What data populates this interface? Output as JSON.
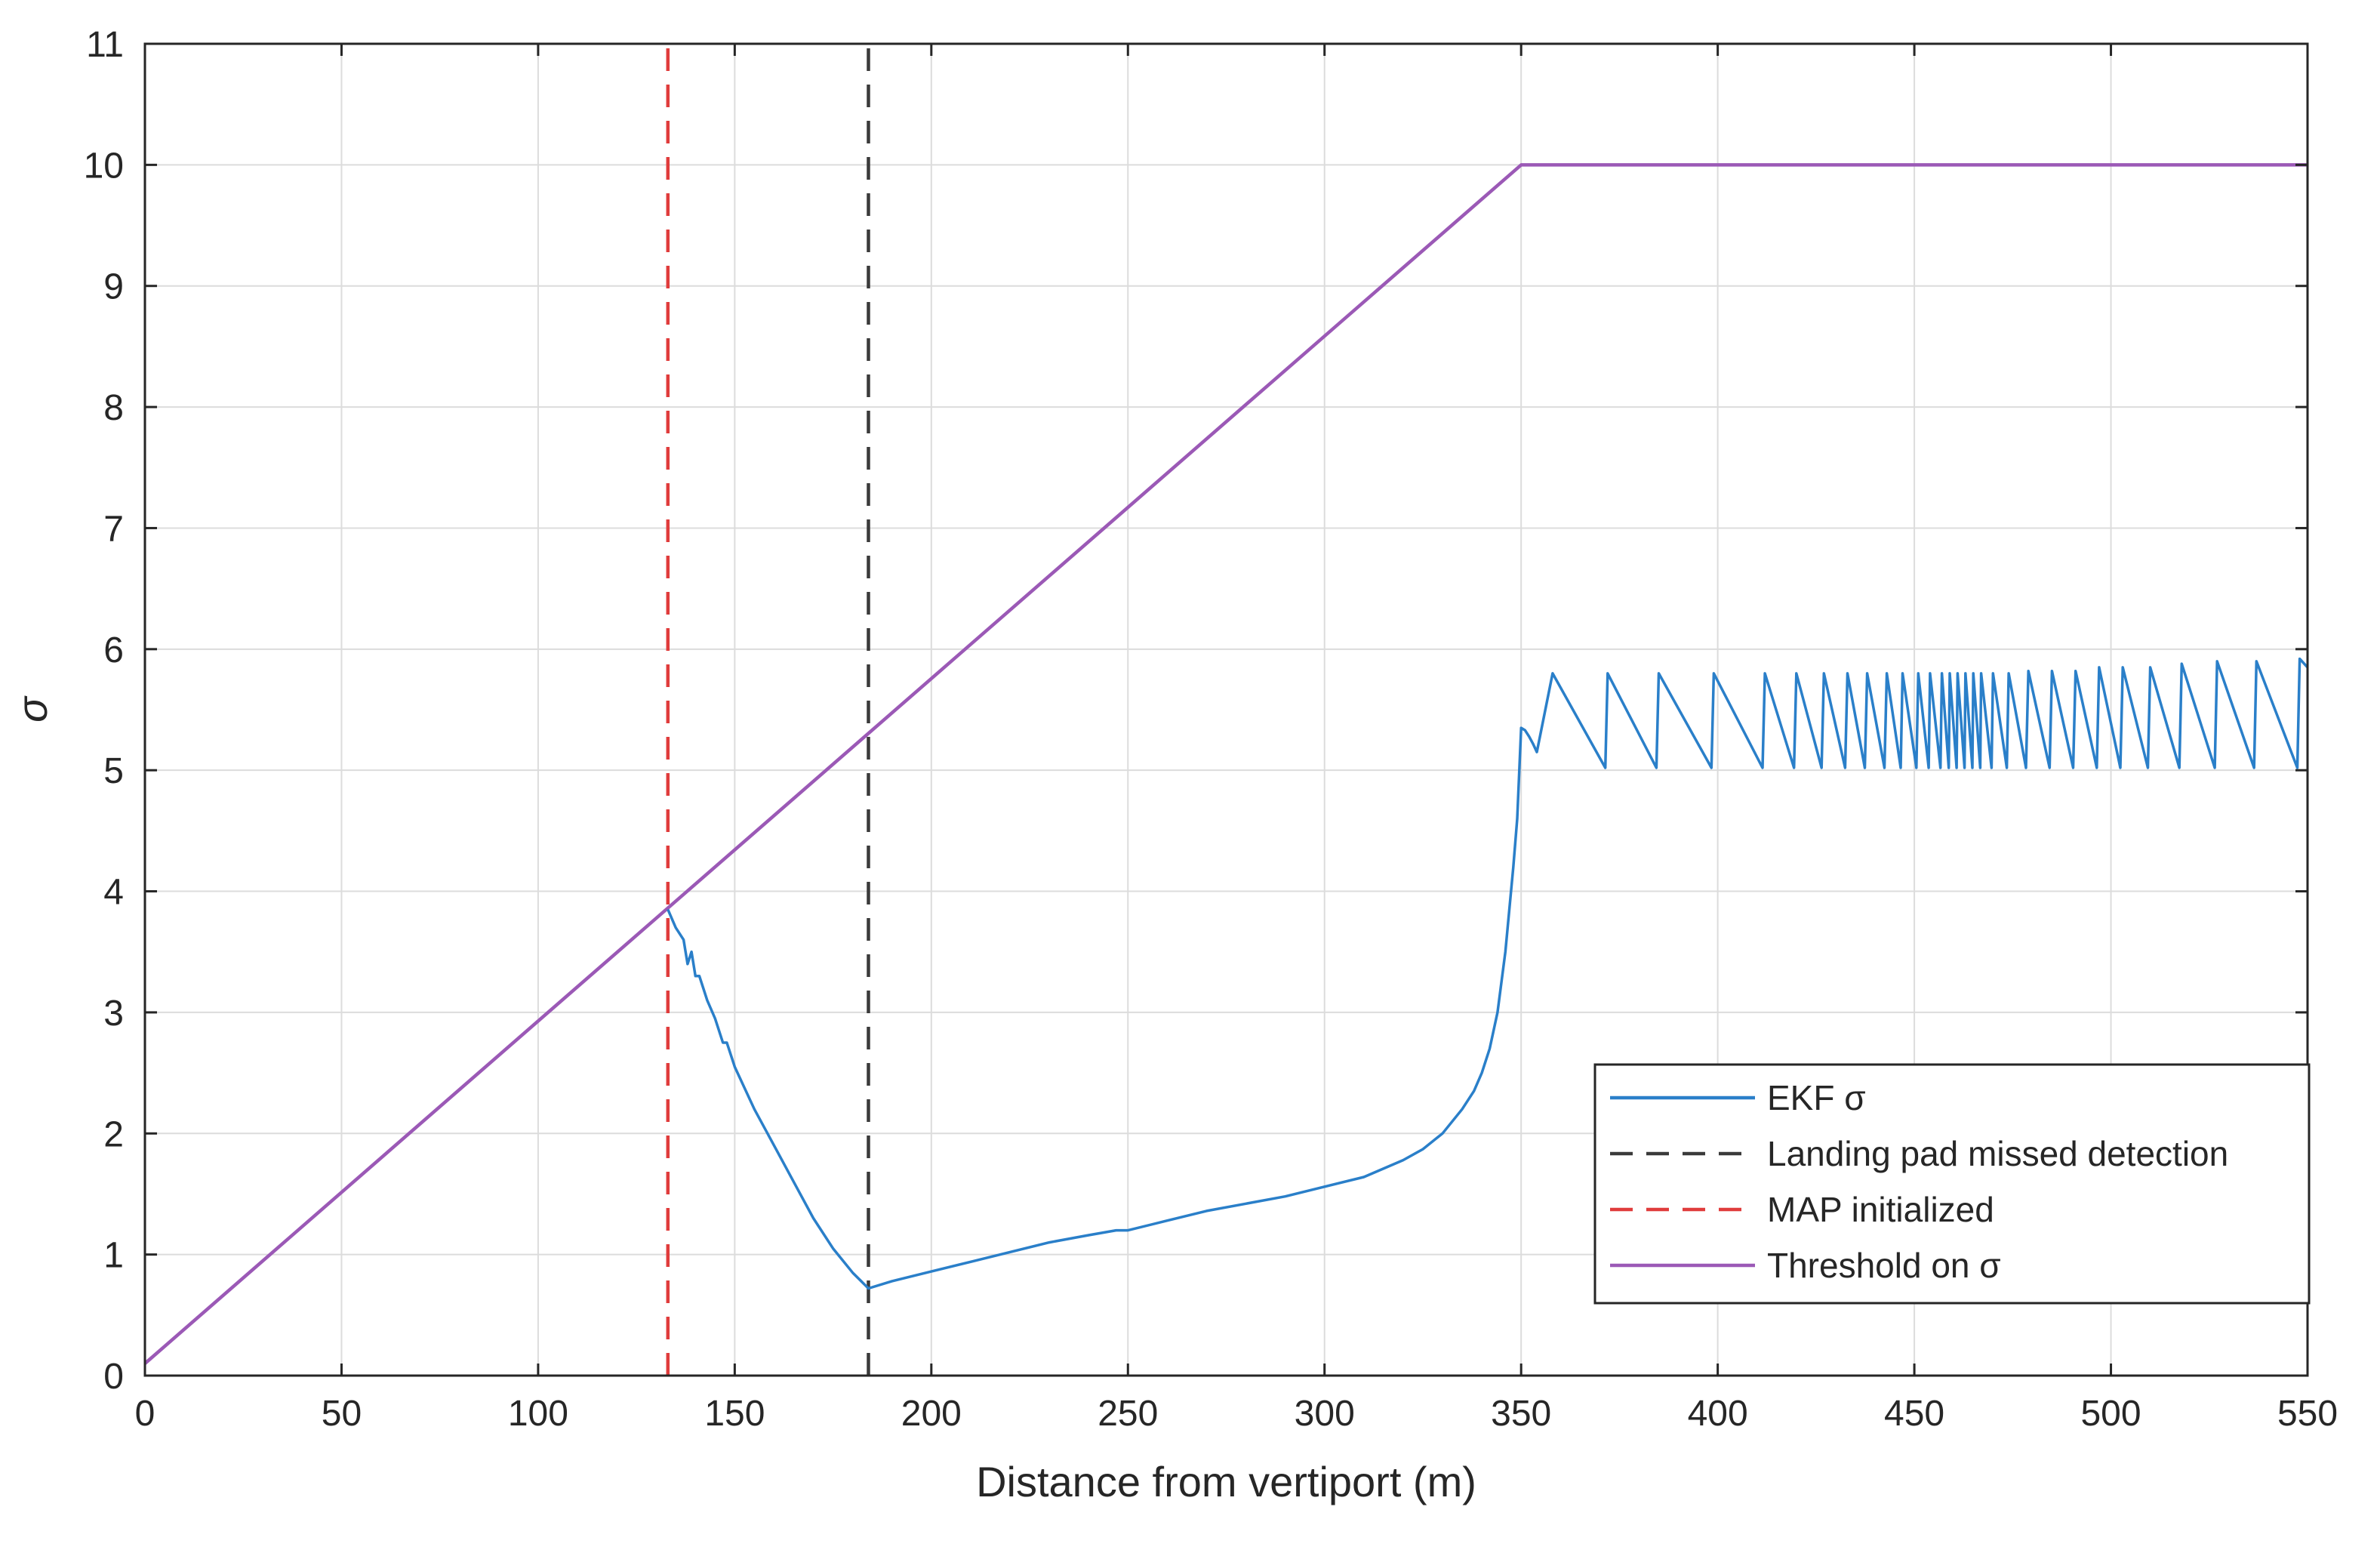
{
  "chart_data": {
    "type": "line",
    "title": "",
    "xlabel": "Distance from vertiport (m)",
    "ylabel": "σ",
    "xlim": [
      0,
      550
    ],
    "ylim": [
      0,
      11
    ],
    "xticks": [
      0,
      50,
      100,
      150,
      200,
      250,
      300,
      350,
      400,
      450,
      500,
      550
    ],
    "yticks": [
      0,
      1,
      2,
      3,
      4,
      5,
      6,
      7,
      8,
      9,
      10,
      11
    ],
    "grid": true,
    "legend_position": "bottom-right",
    "colors": {
      "ekf": "#2a7fc9",
      "missed": "#3a3a3a",
      "map": "#e03c3c",
      "threshold": "#9b59b6",
      "axis": "#262626",
      "grid": "#dcdcdc"
    },
    "series": [
      {
        "name": "EKF σ",
        "style": "solid",
        "color": "#2a7fc9",
        "x": [
          133,
          135,
          137,
          138,
          139,
          140,
          141,
          143,
          145,
          147,
          148,
          150,
          155,
          160,
          165,
          170,
          175,
          180,
          184,
          190,
          200,
          210,
          220,
          230,
          240,
          247,
          250,
          260,
          270,
          280,
          290,
          300,
          310,
          320,
          325,
          330,
          335,
          338,
          340,
          342,
          344,
          346,
          348,
          349,
          350,
          351,
          352,
          353,
          354
        ],
        "y": [
          3.85,
          3.7,
          3.6,
          3.4,
          3.5,
          3.3,
          3.3,
          3.1,
          2.95,
          2.75,
          2.75,
          2.55,
          2.2,
          1.9,
          1.6,
          1.3,
          1.05,
          0.85,
          0.72,
          0.78,
          0.86,
          0.94,
          1.02,
          1.1,
          1.16,
          1.2,
          1.2,
          1.28,
          1.36,
          1.42,
          1.48,
          1.56,
          1.64,
          1.78,
          1.87,
          2.0,
          2.2,
          2.35,
          2.5,
          2.7,
          3.0,
          3.5,
          4.2,
          4.6,
          5.35,
          5.33,
          5.28,
          5.22,
          5.15
        ]
      },
      {
        "name": "Landing pad missed detection",
        "style": "dashed",
        "color": "#3a3a3a",
        "x": [
          184,
          184
        ],
        "y": [
          0,
          11
        ]
      },
      {
        "name": "MAP initialized",
        "style": "dashed",
        "color": "#e03c3c",
        "x": [
          133,
          133
        ],
        "y": [
          0,
          11
        ]
      },
      {
        "name": "Threshold on σ",
        "style": "solid",
        "color": "#9b59b6",
        "x": [
          0,
          350,
          550
        ],
        "y": [
          0.1,
          10,
          10
        ]
      }
    ],
    "ekf_sawtooth": {
      "peak_x": [
        358,
        372,
        385,
        399,
        412,
        420,
        427,
        433,
        438,
        443,
        447,
        451,
        454,
        457,
        459,
        461,
        463,
        465,
        467,
        470,
        474,
        479,
        485,
        491,
        497,
        503,
        510,
        518,
        527,
        537,
        548
      ],
      "peak_y": [
        5.8,
        5.8,
        5.8,
        5.8,
        5.8,
        5.8,
        5.8,
        5.8,
        5.8,
        5.8,
        5.8,
        5.8,
        5.8,
        5.8,
        5.8,
        5.8,
        5.8,
        5.8,
        5.8,
        5.8,
        5.8,
        5.82,
        5.82,
        5.82,
        5.85,
        5.85,
        5.85,
        5.88,
        5.9,
        5.9,
        5.92
      ],
      "trough_y": 5.02,
      "end": [
        550,
        5.85
      ]
    }
  }
}
